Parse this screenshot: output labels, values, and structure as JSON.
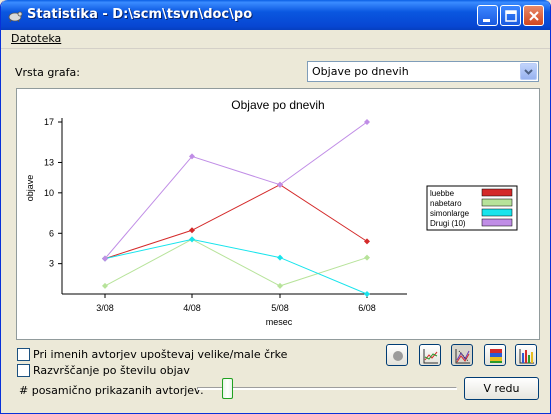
{
  "window": {
    "title": "Statistika - D:\\scm\\tsvn\\doc\\po",
    "minimize_icon": "minimize-icon",
    "maximize_icon": "maximize-icon",
    "close_icon": "close-icon",
    "app_icon": "tortoise-icon"
  },
  "menu": {
    "file_label": "Datoteka"
  },
  "graph_type": {
    "label": "Vrsta grafa:",
    "selected": "Objave po dnevih"
  },
  "chart_data": {
    "type": "line",
    "title": "Objave po dnevih",
    "xlabel": "mesec",
    "ylabel": "objave",
    "categories": [
      "3/08",
      "4/08",
      "5/08",
      "6/08"
    ],
    "y_ticks": [
      3,
      6,
      10,
      13,
      17
    ],
    "ylim": [
      0,
      17
    ],
    "grid": false,
    "legend_position": "right",
    "series": [
      {
        "name": "luebbe",
        "color": "#d42a2a",
        "values": [
          3.5,
          6.3,
          10.8,
          5.2
        ]
      },
      {
        "name": "nabetaro",
        "color": "#b7e39a",
        "values": [
          0.8,
          5.4,
          0.8,
          3.6
        ]
      },
      {
        "name": "simonlarge",
        "color": "#18e4ec",
        "values": [
          3.5,
          5.4,
          3.6,
          0
        ]
      },
      {
        "name": "Drugi (10)",
        "color": "#c08de6",
        "values": [
          3.5,
          13.6,
          10.8,
          17
        ]
      }
    ]
  },
  "options": {
    "case_checkbox_label": "Pri imenih avtorjev upoštevaj velike/male črke",
    "sort_checkbox_label": "Razvrščanje po številu objav",
    "authors_slider_label": "# posamično prikazanih avtorjev:",
    "authors_slider_value": 0.1
  },
  "toolbar": {
    "icons": [
      "record-icon",
      "line-graph-icon",
      "stacked-graph-icon",
      "bar-stacked-icon",
      "bar-graph-icon"
    ]
  },
  "ok_button": {
    "label": "V redu"
  }
}
